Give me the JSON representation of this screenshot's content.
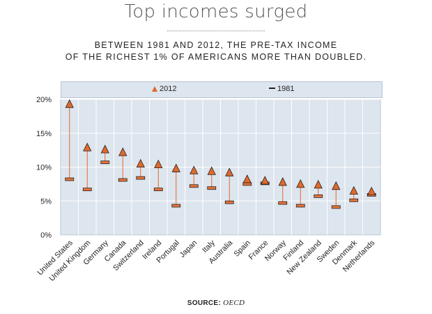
{
  "header": {
    "title": "Top incomes surged",
    "subtitle_line1": "BETWEEN 1981 AND 2012, THE PRE-TAX INCOME",
    "subtitle_line2": "OF THE RICHEST 1% OF AMERICANS MORE THAN DOUBLED."
  },
  "legend": {
    "series_2012": "2012",
    "series_1981": "1981"
  },
  "colors": {
    "marker_2012": "#e06a2c",
    "stem": "#e06a2c",
    "plot_bg": "#dde5ee",
    "grid": "#ffffff",
    "marker_1981": "#e6743a"
  },
  "source": {
    "label": "SOURCE:",
    "name": "OECD"
  },
  "chart_data": {
    "type": "scatter",
    "categories": [
      "United States",
      "United Kingdom",
      "Germany",
      "Canada",
      "Switzerland",
      "Ireland",
      "Portugal",
      "Japan",
      "Italy",
      "Australia",
      "Spain",
      "France",
      "Norway",
      "Finland",
      "New Zealand",
      "Sweden",
      "Denmark",
      "Netherlands"
    ],
    "series": [
      {
        "name": "2012",
        "marker": "triangle",
        "values": [
          19.3,
          12.9,
          12.6,
          12.2,
          10.5,
          10.4,
          9.8,
          9.5,
          9.4,
          9.2,
          8.2,
          8.0,
          7.8,
          7.5,
          7.4,
          7.2,
          6.5,
          6.4
        ]
      },
      {
        "name": "1981",
        "marker": "bar",
        "values": [
          8.2,
          6.7,
          10.7,
          8.1,
          8.4,
          6.7,
          4.3,
          7.2,
          6.9,
          4.8,
          7.5,
          7.6,
          4.7,
          4.3,
          5.7,
          4.1,
          5.1,
          5.9
        ]
      }
    ],
    "yticks": [
      "0%",
      "5%",
      "10%",
      "15%",
      "20%"
    ],
    "ylim": [
      0,
      20
    ],
    "xlabel": "",
    "ylabel": "",
    "grid": true
  }
}
